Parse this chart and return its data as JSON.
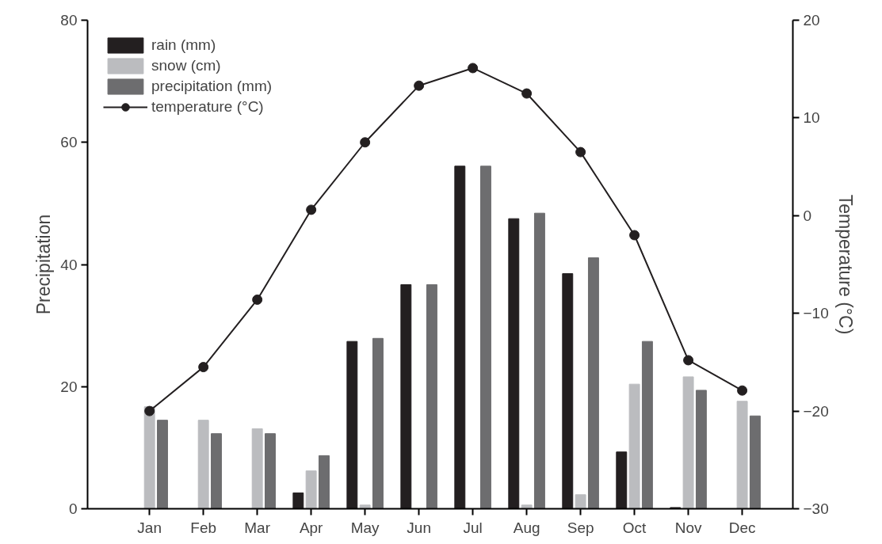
{
  "chart_data": {
    "type": "bar",
    "ylabel": "Precipitation",
    "y2label": "Temperature (°C)",
    "categories": [
      "Jan",
      "Feb",
      "Mar",
      "Apr",
      "May",
      "Jun",
      "Jul",
      "Aug",
      "Sep",
      "Oct",
      "Nov",
      "Dec"
    ],
    "series": [
      {
        "name": "rain (mm)",
        "color": "#231f20",
        "values": [
          null,
          null,
          null,
          2.6,
          27.4,
          36.7,
          56.1,
          47.5,
          38.5,
          9.3,
          0.2,
          null
        ]
      },
      {
        "name": "snow (cm)",
        "color": "#bbbcbf",
        "values": [
          16.7,
          14.5,
          13.1,
          6.2,
          0.6,
          null,
          null,
          0.6,
          2.3,
          20.4,
          21.6,
          17.6
        ]
      },
      {
        "name": "precipitation (mm)",
        "color": "#6d6d6f",
        "values": [
          14.5,
          12.3,
          12.3,
          8.7,
          27.9,
          36.7,
          56.1,
          48.4,
          41.1,
          27.4,
          19.4,
          15.2
        ]
      },
      {
        "name": "temperature (°C)",
        "type": "line",
        "axis": "y2",
        "color": "#231f20",
        "marker": "circle",
        "values": [
          -20.0,
          -15.5,
          -8.6,
          0.6,
          7.5,
          13.3,
          15.1,
          12.5,
          6.5,
          -2.0,
          -14.8,
          -17.9
        ]
      }
    ],
    "ylim": [
      0,
      80
    ],
    "yticks": [
      0,
      20,
      40,
      60,
      80
    ],
    "y2lim": [
      -30,
      20
    ],
    "y2ticks": [
      -30,
      -20,
      -10,
      0,
      10,
      20
    ],
    "grid": false,
    "legend": "top left"
  }
}
